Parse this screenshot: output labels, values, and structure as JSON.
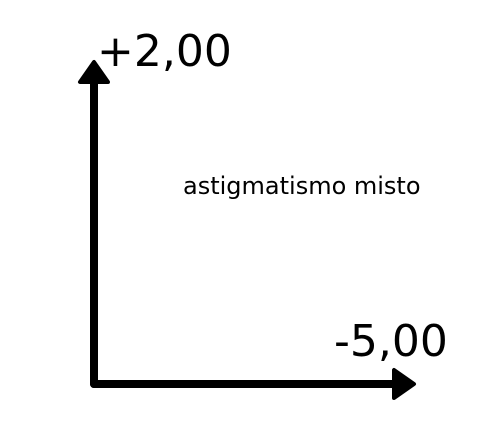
{
  "diagram": {
    "y_axis_label": "+2,00",
    "x_axis_label": "-5,00",
    "region_label": "astigmatismo misto",
    "line_color": "#000000"
  }
}
